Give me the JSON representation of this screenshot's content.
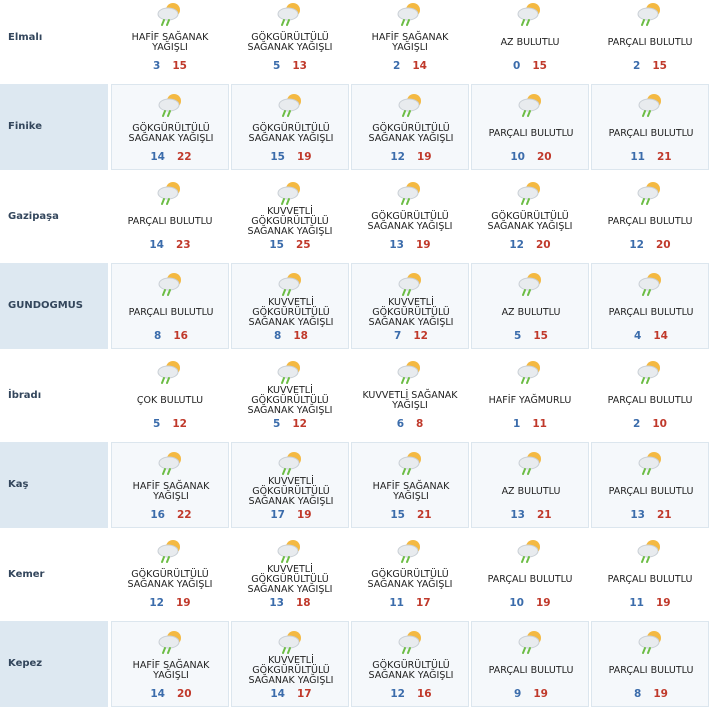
{
  "rows": [
    {
      "label": "Elmalı",
      "cells": [
        {
          "desc": "HAFİF SAĞANAK YAĞIŞLI",
          "min": 3,
          "max": 15
        },
        {
          "desc": "GÖKGÜRÜLTÜLÜ SAĞANAK YAĞIŞLI",
          "min": 5,
          "max": 13
        },
        {
          "desc": "HAFİF SAĞANAK YAĞIŞLI",
          "min": 2,
          "max": 14
        },
        {
          "desc": "AZ BULUTLU",
          "min": 0,
          "max": 15
        },
        {
          "desc": "PARÇALI BULUTLU",
          "min": 2,
          "max": 15
        }
      ]
    },
    {
      "label": "Finike",
      "cells": [
        {
          "desc": "GÖKGÜRÜLTÜLÜ SAĞANAK YAĞIŞLI",
          "min": 14,
          "max": 22
        },
        {
          "desc": "GÖKGÜRÜLTÜLÜ SAĞANAK YAĞIŞLI",
          "min": 15,
          "max": 19
        },
        {
          "desc": "GÖKGÜRÜLTÜLÜ SAĞANAK YAĞIŞLI",
          "min": 12,
          "max": 19
        },
        {
          "desc": "PARÇALI BULUTLU",
          "min": 10,
          "max": 20
        },
        {
          "desc": "PARÇALI BULUTLU",
          "min": 11,
          "max": 21
        }
      ]
    },
    {
      "label": "Gazipaşa",
      "cells": [
        {
          "desc": "PARÇALI BULUTLU",
          "min": 14,
          "max": 23
        },
        {
          "desc": "KUVVETLİ GÖKGÜRÜLTÜLÜ SAĞANAK YAĞIŞLI",
          "min": 15,
          "max": 25
        },
        {
          "desc": "GÖKGÜRÜLTÜLÜ SAĞANAK YAĞIŞLI",
          "min": 13,
          "max": 19
        },
        {
          "desc": "GÖKGÜRÜLTÜLÜ SAĞANAK YAĞIŞLI",
          "min": 12,
          "max": 20
        },
        {
          "desc": "PARÇALI BULUTLU",
          "min": 12,
          "max": 20
        }
      ]
    },
    {
      "label": "GUNDOGMUS",
      "cells": [
        {
          "desc": "PARÇALI BULUTLU",
          "min": 8,
          "max": 16
        },
        {
          "desc": "KUVVETLİ GÖKGÜRÜLTÜLÜ SAĞANAK YAĞIŞLI",
          "min": 8,
          "max": 18
        },
        {
          "desc": "KUVVETLİ GÖKGÜRÜLTÜLÜ SAĞANAK YAĞIŞLI",
          "min": 7,
          "max": 12
        },
        {
          "desc": "AZ BULUTLU",
          "min": 5,
          "max": 15
        },
        {
          "desc": "PARÇALI BULUTLU",
          "min": 4,
          "max": 14
        }
      ]
    },
    {
      "label": "İbradı",
      "cells": [
        {
          "desc": "ÇOK BULUTLU",
          "min": 5,
          "max": 12
        },
        {
          "desc": "KUVVETLİ GÖKGÜRÜLTÜLÜ SAĞANAK YAĞIŞLI",
          "min": 5,
          "max": 12
        },
        {
          "desc": "KUVVETLİ SAĞANAK YAĞIŞLI",
          "min": 6,
          "max": 8
        },
        {
          "desc": "HAFİF YAĞMURLU",
          "min": 1,
          "max": 11
        },
        {
          "desc": "PARÇALI BULUTLU",
          "min": 2,
          "max": 10
        }
      ]
    },
    {
      "label": "Kaş",
      "cells": [
        {
          "desc": "HAFİF SAĞANAK YAĞIŞLI",
          "min": 16,
          "max": 22
        },
        {
          "desc": "KUVVETLİ GÖKGÜRÜLTÜLÜ SAĞANAK YAĞIŞLI",
          "min": 17,
          "max": 19
        },
        {
          "desc": "HAFİF SAĞANAK YAĞIŞLI",
          "min": 15,
          "max": 21
        },
        {
          "desc": "AZ BULUTLU",
          "min": 13,
          "max": 21
        },
        {
          "desc": "PARÇALI BULUTLU",
          "min": 13,
          "max": 21
        }
      ]
    },
    {
      "label": "Kemer",
      "cells": [
        {
          "desc": "GÖKGÜRÜLTÜLÜ SAĞANAK YAĞIŞLI",
          "min": 12,
          "max": 19
        },
        {
          "desc": "KUVVETLİ GÖKGÜRÜLTÜLÜ SAĞANAK YAĞIŞLI",
          "min": 13,
          "max": 18
        },
        {
          "desc": "GÖKGÜRÜLTÜLÜ SAĞANAK YAĞIŞLI",
          "min": 11,
          "max": 17
        },
        {
          "desc": "PARÇALI BULUTLU",
          "min": 10,
          "max": 19
        },
        {
          "desc": "PARÇALI BULUTLU",
          "min": 11,
          "max": 19
        }
      ]
    },
    {
      "label": "Kepez",
      "cells": [
        {
          "desc": "HAFİF SAĞANAK YAĞIŞLI",
          "min": 14,
          "max": 20
        },
        {
          "desc": "KUVVETLİ GÖKGÜRÜLTÜLÜ SAĞANAK YAĞIŞLI",
          "min": 14,
          "max": 17
        },
        {
          "desc": "GÖKGÜRÜLTÜLÜ SAĞANAK YAĞIŞLI",
          "min": 12,
          "max": 16
        },
        {
          "desc": "PARÇALI BULUTLU",
          "min": 9,
          "max": 19
        },
        {
          "desc": "PARÇALI BULUTLU",
          "min": 8,
          "max": 19
        }
      ]
    }
  ]
}
